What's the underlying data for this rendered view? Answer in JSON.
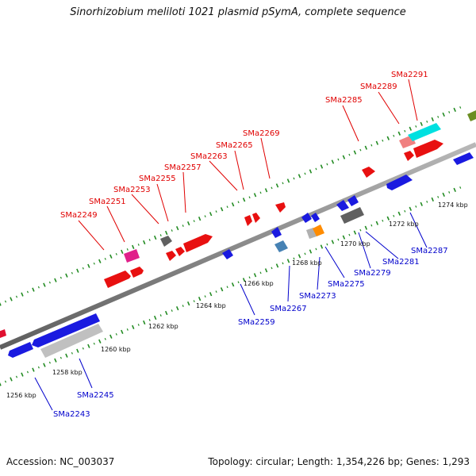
{
  "title": "Sinorhizobium meliloti 1021 plasmid pSymA, complete sequence",
  "footer": {
    "accession": "Accession: NC_003037",
    "topology": "Topology: circular; Length: 1,354,226 bp; Genes: 1,293"
  },
  "colors": {
    "top_strand_label": "#e00000",
    "bottom_strand_label": "#0000cc",
    "backbone": "#8c8c8c",
    "tick": "#228b22"
  },
  "scale_labels": [
    "1256 kbp",
    "1258 kbp",
    "1260 kbp",
    "1262 kbp",
    "1264 kbp",
    "1266 kbp",
    "1268 kbp",
    "1270 kbp",
    "1272 kbp",
    "1274 kbp"
  ],
  "top_labels": [
    "SMa2249",
    "SMa2251",
    "SMa2253",
    "SMa2255",
    "SMa2257",
    "SMa2263",
    "SMa2265",
    "SMa2269",
    "SMa2285",
    "SMa2289",
    "SMa2291"
  ],
  "bottom_labels": [
    "SMa2243",
    "SMa2245",
    "SMa2259",
    "SMa2267",
    "SMa2273",
    "SMa2275",
    "SMa2279",
    "SMa2281",
    "SMa2287"
  ]
}
